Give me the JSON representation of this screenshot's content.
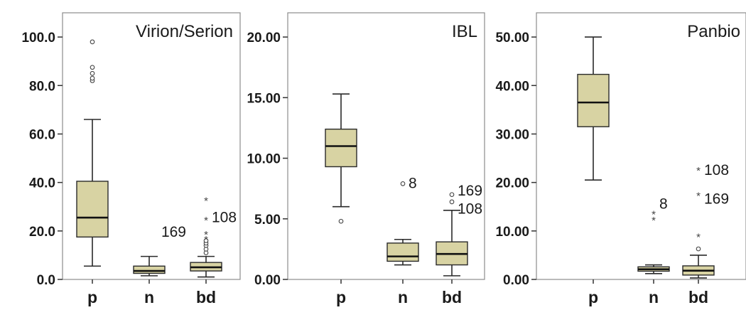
{
  "chart_data": [
    {
      "type": "box",
      "title": "Virion/Serion",
      "categories": [
        "p",
        "n",
        "bd"
      ],
      "ylim": [
        0,
        110
      ],
      "yticks": [
        "0.0",
        "20.0",
        "40.0",
        "60.0",
        "80.0",
        "100.0"
      ],
      "ytick_values": [
        0,
        20,
        40,
        60,
        80,
        100
      ],
      "boxes": [
        {
          "category": "p",
          "min": 5.5,
          "q1": 17.5,
          "median": 25.5,
          "q3": 40.5,
          "max": 66,
          "outliers": [
            82,
            83,
            85,
            87.5,
            98
          ],
          "extremes": []
        },
        {
          "category": "n",
          "min": 1.5,
          "q1": 2.5,
          "median": 3.5,
          "q3": 5.5,
          "max": 9.5,
          "outliers": [],
          "extremes": []
        },
        {
          "category": "bd",
          "min": 1.0,
          "q1": 3.5,
          "median": 5.0,
          "q3": 7.0,
          "max": 9.5,
          "outliers": [
            11,
            12.5,
            14,
            15,
            16
          ],
          "extremes": [
            17,
            19,
            25,
            33
          ]
        }
      ],
      "annotations": [
        {
          "text": "108",
          "category": "bd",
          "y": 26,
          "side": "right"
        },
        {
          "text": "169",
          "category": "bd",
          "y": 20,
          "side": "left"
        }
      ]
    },
    {
      "type": "box",
      "title": "IBL",
      "categories": [
        "p",
        "n",
        "bd"
      ],
      "ylim": [
        0,
        22
      ],
      "yticks": [
        "0.00",
        "5.00",
        "10.00",
        "15.00",
        "20.00"
      ],
      "ytick_values": [
        0,
        5,
        10,
        15,
        20
      ],
      "boxes": [
        {
          "category": "p",
          "min": 6.0,
          "q1": 9.3,
          "median": 11.0,
          "q3": 12.4,
          "max": 15.3,
          "outliers": [
            4.8
          ],
          "extremes": []
        },
        {
          "category": "n",
          "min": 1.2,
          "q1": 1.5,
          "median": 1.9,
          "q3": 3.0,
          "max": 3.3,
          "outliers": [
            7.9
          ],
          "extremes": []
        },
        {
          "category": "bd",
          "min": 0.3,
          "q1": 1.2,
          "median": 2.1,
          "q3": 3.1,
          "max": 5.7,
          "outliers": [
            6.4,
            7.0
          ],
          "extremes": []
        }
      ],
      "annotations": [
        {
          "text": "8",
          "category": "n",
          "y": 8.0,
          "side": "right"
        },
        {
          "text": "169",
          "category": "bd",
          "y": 7.4,
          "side": "right"
        },
        {
          "text": "108",
          "category": "bd",
          "y": 5.9,
          "side": "right"
        }
      ]
    },
    {
      "type": "box",
      "title": "Panbio",
      "categories": [
        "p",
        "n",
        "bd"
      ],
      "ylim": [
        0,
        55
      ],
      "yticks": [
        "0.00",
        "10.00",
        "20.00",
        "30.00",
        "40.00",
        "50.00"
      ],
      "ytick_values": [
        0,
        10,
        20,
        30,
        40,
        50
      ],
      "boxes": [
        {
          "category": "p",
          "min": 20.5,
          "q1": 31.5,
          "median": 36.5,
          "q3": 42.3,
          "max": 50,
          "outliers": [],
          "extremes": []
        },
        {
          "category": "n",
          "min": 1.2,
          "q1": 1.7,
          "median": 2.1,
          "q3": 2.6,
          "max": 3.0,
          "outliers": [],
          "extremes": [
            12.5,
            13.7
          ]
        },
        {
          "category": "bd",
          "min": 0.3,
          "q1": 0.9,
          "median": 1.8,
          "q3": 2.8,
          "max": 5.0,
          "outliers": [
            6.3
          ],
          "extremes": [
            9.0,
            17.5,
            22.7
          ]
        }
      ],
      "annotations": [
        {
          "text": "8",
          "category": "n",
          "y": 15.8,
          "side": "right"
        },
        {
          "text": "108",
          "category": "bd",
          "y": 22.7,
          "side": "right"
        },
        {
          "text": "169",
          "category": "bd",
          "y": 16.8,
          "side": "right"
        }
      ]
    }
  ],
  "style": {
    "box_fill": "#d8d3a3",
    "stroke": "#2a2a2a",
    "frame": "#8c8c8c"
  }
}
